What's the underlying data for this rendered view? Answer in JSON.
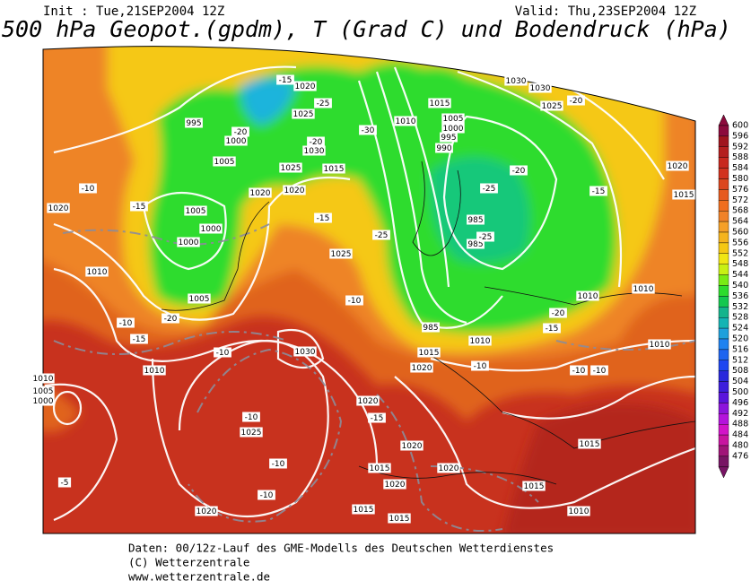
{
  "header": {
    "init": "Init : Tue,21SEP2004 12Z",
    "valid": "Valid: Thu,23SEP2004 12Z",
    "title": "500 hPa Geopot.(gpdm), T (Grad C) und Bodendruck (hPa)"
  },
  "colorbar": {
    "levels": [
      600,
      596,
      592,
      588,
      584,
      580,
      576,
      572,
      568,
      564,
      560,
      556,
      552,
      548,
      544,
      540,
      536,
      532,
      528,
      524,
      520,
      516,
      512,
      508,
      504,
      500,
      496,
      492,
      488,
      484,
      480,
      476
    ],
    "colors": [
      "#8c0a3c",
      "#a0141e",
      "#b41e1e",
      "#c8281e",
      "#d2321e",
      "#dc461e",
      "#e65a1e",
      "#f06e1e",
      "#f08228",
      "#f5a028",
      "#f5b41e",
      "#f5c814",
      "#f0e614",
      "#c8f014",
      "#78eb14",
      "#2ddc2d",
      "#14c850",
      "#14b48c",
      "#14b4b4",
      "#1ea0dc",
      "#1e82f0",
      "#1e64f0",
      "#1e46f0",
      "#2828dc",
      "#3c1edc",
      "#5a14dc",
      "#8c14dc",
      "#b414dc",
      "#d214c8",
      "#c814a0",
      "#a01478",
      "#781464"
    ]
  },
  "contour_labels": [
    -15,
    1020,
    -25,
    1025,
    995,
    -20,
    1000,
    -30,
    1010,
    1015,
    1005,
    1000,
    995,
    990,
    -20,
    1030,
    1015,
    1025,
    1005,
    -10,
    -15,
    1020,
    1020,
    1020,
    1005,
    1000,
    1000,
    -20,
    -25,
    985,
    985,
    -25,
    -15,
    -25,
    1025,
    1010,
    1005,
    -20,
    -15,
    -10,
    1010,
    -10,
    1030,
    -10,
    985,
    1010,
    1015,
    1020,
    -10,
    1010,
    -15,
    1010,
    -20,
    -15,
    1010,
    -10,
    -10,
    1020,
    -15,
    -10,
    1025,
    1020,
    1020,
    -10,
    1015,
    1015,
    1015,
    1020,
    -10,
    1020,
    1015,
    1015,
    1010,
    -5,
    1010,
    1005,
    1000,
    1030,
    1030,
    1025,
    -20,
    1020,
    1015
  ],
  "footer": {
    "line1": "Daten: 00/12z-Lauf des GME-Modells des Deutschen Wetterdienstes",
    "line2": "(C) Wetterzentrale",
    "line3": "www.wetterzentrale.de"
  }
}
